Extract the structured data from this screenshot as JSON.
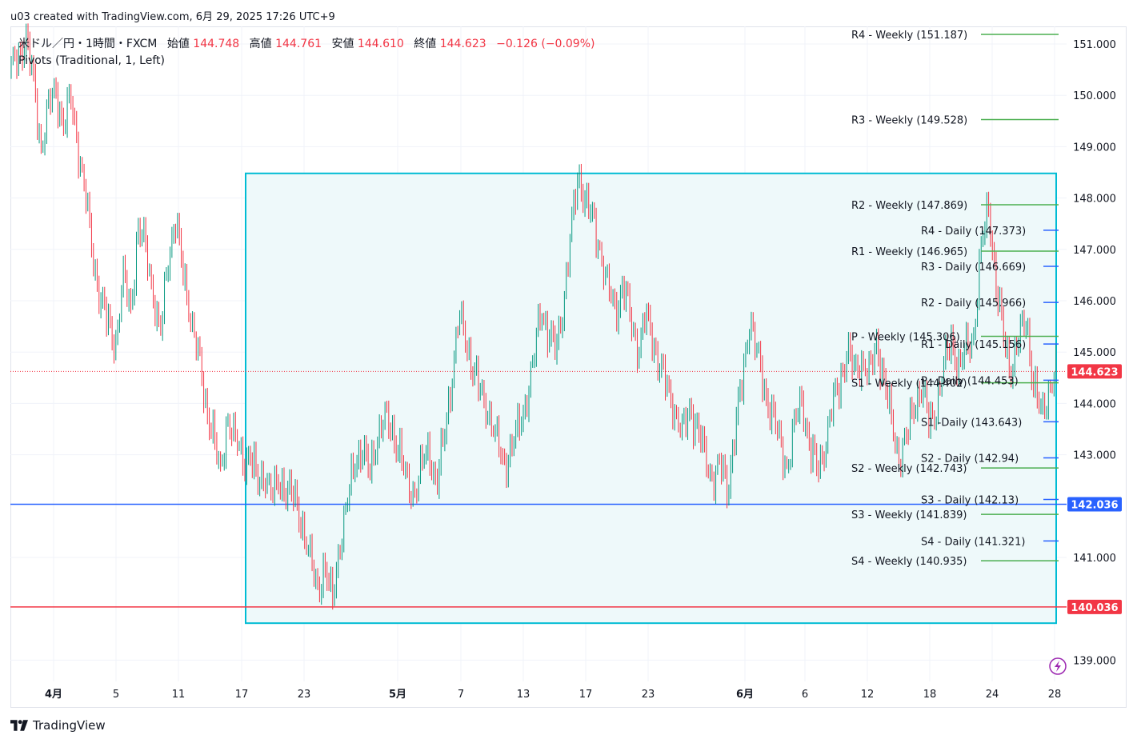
{
  "header": {
    "caption": "u03 created with TradingView.com, 6月 29, 2025 17:26 UTC+9"
  },
  "legend": {
    "symbol": "米ドル／円・1時間・FXCM",
    "open_label": "始値",
    "open": "144.748",
    "high_label": "高値",
    "high": "144.761",
    "low_label": "安値",
    "low": "144.610",
    "close_label": "終値",
    "close": "144.623",
    "change": "−0.126 (−0.09%)",
    "indicator": "Pivots (Traditional, 1, Left)"
  },
  "footer": {
    "brand": "TradingView"
  },
  "colors": {
    "up": "#089981",
    "down": "#f23645",
    "weekly": "#4caf50",
    "daily": "#2962ff",
    "box_border": "#00bcd4",
    "box_fill": "#eef9fa",
    "last_price": "#f23645",
    "blue_line": "#2962ff",
    "red_line": "#f23645"
  },
  "chart_data": {
    "type": "line",
    "title": "米ドル／円・1時間・FXCM",
    "xlabel": "",
    "ylabel": "",
    "ylim": [
      138.7,
      151.25
    ],
    "x_ticks": [
      "4月",
      "5",
      "11",
      "17",
      "23",
      "5月",
      "7",
      "13",
      "17",
      "23",
      "6月",
      "6",
      "12",
      "18",
      "24",
      "28"
    ],
    "y_ticks": [
      "151.000",
      "150.000",
      "149.000",
      "148.000",
      "147.000",
      "146.000",
      "145.000",
      "144.000",
      "143.000",
      "141.000",
      "139.000"
    ],
    "grid": true,
    "series": [
      {
        "values": [
          [
            0,
            150.5
          ],
          [
            1,
            150.8
          ],
          [
            2,
            151.1
          ],
          [
            3,
            150.2
          ],
          [
            4,
            149.0
          ],
          [
            5,
            149.8
          ],
          [
            6,
            150.1
          ],
          [
            7,
            149.4
          ],
          [
            8,
            149.9
          ],
          [
            9,
            149.0
          ],
          [
            10,
            148.0
          ],
          [
            11,
            146.8
          ],
          [
            12,
            146.0
          ],
          [
            13,
            145.5
          ],
          [
            14,
            145.2
          ],
          [
            15,
            146.5
          ],
          [
            16,
            145.8
          ],
          [
            17,
            147.4
          ],
          [
            18,
            147.0
          ],
          [
            19,
            146.2
          ],
          [
            20,
            145.3
          ],
          [
            21,
            146.8
          ],
          [
            22,
            147.6
          ],
          [
            23,
            146.5
          ],
          [
            24,
            145.8
          ],
          [
            25,
            145.0
          ],
          [
            26,
            144.0
          ],
          [
            27,
            143.5
          ],
          [
            28,
            142.5
          ],
          [
            29,
            143.8
          ],
          [
            30,
            143.3
          ],
          [
            31,
            142.9
          ],
          [
            32,
            143.0
          ],
          [
            33,
            142.4
          ],
          [
            34,
            142.7
          ],
          [
            35,
            142.2
          ],
          [
            36,
            142.5
          ],
          [
            37,
            142.3
          ],
          [
            38,
            142.1
          ],
          [
            39,
            141.7
          ],
          [
            40,
            141.0
          ],
          [
            41,
            140.4
          ],
          [
            42,
            140.8
          ],
          [
            43,
            140.1
          ],
          [
            44,
            141.3
          ],
          [
            45,
            142.0
          ],
          [
            46,
            142.9
          ],
          [
            47,
            143.1
          ],
          [
            48,
            142.6
          ],
          [
            49,
            143.4
          ],
          [
            50,
            143.7
          ],
          [
            51,
            143.5
          ],
          [
            52,
            143.1
          ],
          [
            53,
            142.4
          ],
          [
            54,
            142.3
          ],
          [
            55,
            142.8
          ],
          [
            56,
            143.1
          ],
          [
            57,
            142.4
          ],
          [
            58,
            143.3
          ],
          [
            59,
            144.5
          ],
          [
            60,
            145.7
          ],
          [
            61,
            145.2
          ],
          [
            62,
            144.6
          ],
          [
            63,
            144.1
          ],
          [
            64,
            143.9
          ],
          [
            65,
            143.3
          ],
          [
            66,
            142.8
          ],
          [
            67,
            143.1
          ],
          [
            68,
            143.5
          ],
          [
            69,
            144.1
          ],
          [
            70,
            144.8
          ],
          [
            71,
            145.9
          ],
          [
            72,
            145.3
          ],
          [
            73,
            145.0
          ],
          [
            74,
            146.0
          ],
          [
            75,
            147.3
          ],
          [
            76,
            148.5
          ],
          [
            77,
            147.9
          ],
          [
            78,
            147.5
          ],
          [
            79,
            147.0
          ],
          [
            80,
            146.2
          ],
          [
            81,
            145.8
          ],
          [
            82,
            146.3
          ],
          [
            83,
            145.6
          ],
          [
            84,
            145.1
          ],
          [
            85,
            145.7
          ],
          [
            86,
            145.2
          ],
          [
            87,
            144.7
          ],
          [
            88,
            144.2
          ],
          [
            89,
            143.9
          ],
          [
            90,
            143.4
          ],
          [
            91,
            143.9
          ],
          [
            92,
            143.5
          ],
          [
            93,
            142.9
          ],
          [
            94,
            142.6
          ],
          [
            95,
            142.8
          ],
          [
            96,
            142.3
          ],
          [
            97,
            143.5
          ],
          [
            98,
            144.4
          ],
          [
            99,
            145.8
          ],
          [
            100,
            144.9
          ],
          [
            101,
            144.2
          ],
          [
            102,
            143.8
          ],
          [
            103,
            143.2
          ],
          [
            104,
            142.8
          ],
          [
            105,
            143.6
          ],
          [
            106,
            144.1
          ],
          [
            107,
            143.1
          ],
          [
            108,
            142.7
          ],
          [
            109,
            143.2
          ],
          [
            110,
            143.9
          ],
          [
            111,
            144.4
          ],
          [
            112,
            145.0
          ],
          [
            113,
            144.6
          ],
          [
            114,
            144.9
          ],
          [
            115,
            144.5
          ],
          [
            116,
            145.2
          ],
          [
            117,
            144.4
          ],
          [
            118,
            143.6
          ],
          [
            119,
            143.0
          ],
          [
            120,
            143.3
          ],
          [
            121,
            144.0
          ],
          [
            122,
            144.3
          ],
          [
            123,
            143.6
          ],
          [
            124,
            144.0
          ],
          [
            125,
            144.7
          ],
          [
            126,
            145.3
          ],
          [
            127,
            144.6
          ],
          [
            128,
            145.1
          ],
          [
            129,
            145.4
          ],
          [
            130,
            147.0
          ],
          [
            131,
            147.9
          ],
          [
            132,
            146.2
          ],
          [
            133,
            145.3
          ],
          [
            134,
            144.7
          ],
          [
            135,
            145.2
          ],
          [
            136,
            145.7
          ],
          [
            137,
            144.3
          ],
          [
            138,
            143.8
          ],
          [
            139,
            144.3
          ],
          [
            140,
            144.6
          ]
        ]
      }
    ],
    "pivots_weekly": [
      {
        "label": "R4 - Weekly (151.187)",
        "value": 151.187
      },
      {
        "label": "R3 - Weekly (149.528)",
        "value": 149.528
      },
      {
        "label": "R2 - Weekly (147.869)",
        "value": 147.869
      },
      {
        "label": "R1 - Weekly (146.965)",
        "value": 146.965
      },
      {
        "label": "P - Weekly (145.306)",
        "value": 145.306
      },
      {
        "label": "S1 - Weekly (144.402)",
        "value": 144.402
      },
      {
        "label": "S2 - Weekly (142.743)",
        "value": 142.743
      },
      {
        "label": "S3 - Weekly (141.839)",
        "value": 141.839
      },
      {
        "label": "S4 - Weekly (140.935)",
        "value": 140.935
      }
    ],
    "pivots_daily": [
      {
        "label": "R4 - Daily (147.373)",
        "value": 147.373
      },
      {
        "label": "R3 - Daily (146.669)",
        "value": 146.669
      },
      {
        "label": "R2 - Daily (145.966)",
        "value": 145.966
      },
      {
        "label": "R1 - Daily (145.156)",
        "value": 145.156
      },
      {
        "label": "P - Daily (144.453)",
        "value": 144.453
      },
      {
        "label": "S1 -Daily (143.643)",
        "value": 143.643
      },
      {
        "label": "S2 - Daily (142.94)",
        "value": 142.94
      },
      {
        "label": "S3 - Daily (142.13)",
        "value": 142.13
      },
      {
        "label": "S4 - Daily (141.321)",
        "value": 141.321
      }
    ],
    "horizontal_lines": [
      {
        "value": 142.036,
        "label": "142.036",
        "color": "#2962ff"
      },
      {
        "value": 140.036,
        "label": "140.036",
        "color": "#f23645"
      }
    ],
    "last_price": {
      "value": 144.623,
      "label": "144.623"
    },
    "range_box": {
      "top": 148.48,
      "bottom": 139.72
    }
  }
}
